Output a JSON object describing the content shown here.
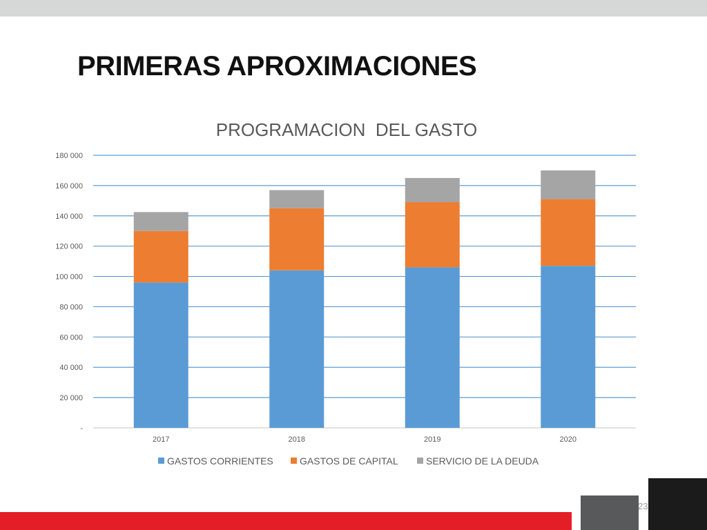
{
  "slide": {
    "title": "PRIMERAS APROXIMACIONES",
    "page_number": "23"
  },
  "colors": {
    "gastos_corrientes": "#5b9bd5",
    "gastos_de_capital": "#ed7d31",
    "servicio_de_la_deuda": "#a5a5a5",
    "gridline": "#5b9bd5",
    "accent_red": "#e41e26"
  },
  "chart_data": {
    "type": "bar",
    "stacked": true,
    "title": "PROGRAMACION  DEL GASTO",
    "xlabel": "",
    "ylabel": "",
    "categories": [
      "2017",
      "2018",
      "2019",
      "2020"
    ],
    "series": [
      {
        "name": "GASTOS CORRIENTES",
        "values": [
          96000,
          104000,
          106000,
          107000
        ]
      },
      {
        "name": "GASTOS DE CAPITAL",
        "values": [
          34000,
          41000,
          43000,
          44000
        ]
      },
      {
        "name": "SERVICIO DE LA DEUDA",
        "values": [
          12500,
          12000,
          16000,
          19000
        ]
      }
    ],
    "ylim": [
      0,
      180000
    ],
    "yticks": [
      0,
      20000,
      40000,
      60000,
      80000,
      100000,
      120000,
      140000,
      160000,
      180000
    ],
    "ytick_labels": [
      "-",
      "20 000",
      "40 000",
      "60 000",
      "80 000",
      "100 000",
      "120 000",
      "140 000",
      "160 000",
      "180 000"
    ],
    "grid": true,
    "legend_position": "bottom"
  }
}
